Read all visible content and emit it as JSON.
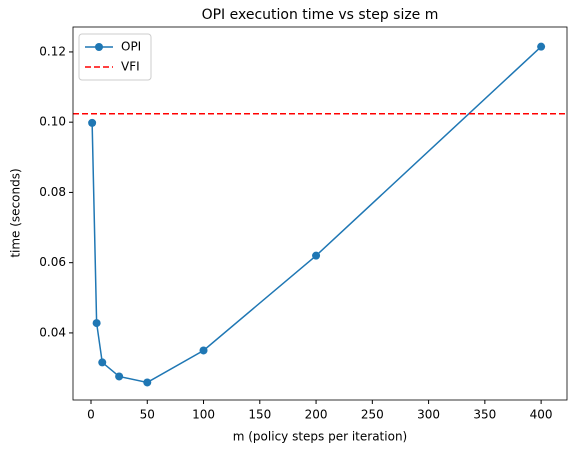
{
  "chart_data": {
    "type": "line",
    "title": "OPI execution time vs step size m",
    "x_label": "m (policy steps per iteration)",
    "y_label": "time (seconds)",
    "x": [
      1,
      5,
      10,
      25,
      50,
      100,
      200,
      400
    ],
    "series": [
      {
        "name": "OPI",
        "color": "#1f77b4",
        "marker": "circle",
        "values": [
          0.0998,
          0.0428,
          0.0316,
          0.0276,
          0.0259,
          0.035,
          0.062,
          0.1215
        ]
      }
    ],
    "reference_lines": [
      {
        "name": "VFI",
        "color": "#ff0000",
        "style": "dashed",
        "value": 0.1024
      }
    ],
    "xlim": [
      -16,
      423
    ],
    "ylim": [
      0.0209,
      0.1271
    ],
    "xticks": [
      0,
      50,
      100,
      150,
      200,
      250,
      300,
      350,
      400
    ],
    "yticks": [
      0.04,
      0.06,
      0.08,
      {
        "value": 0.1,
        "label": "0.10"
      },
      0.12
    ],
    "legend": "upper left",
    "grid": false
  }
}
